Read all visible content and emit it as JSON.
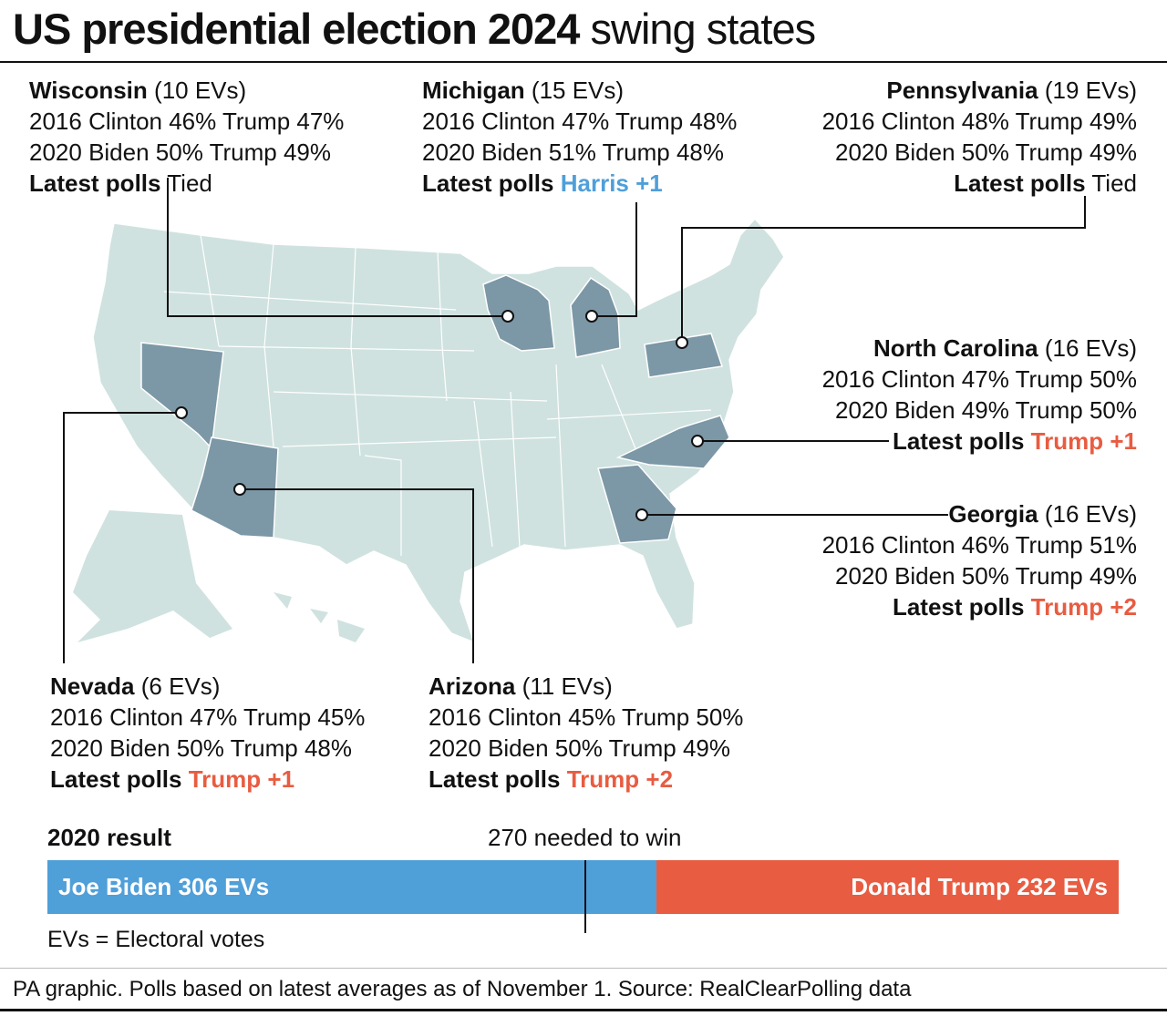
{
  "title": {
    "bold": "US presidential election 2024",
    "regular": "swing states"
  },
  "colors": {
    "map_land": "#cfe2df",
    "swing_state": "#7c97a6",
    "biden_blue": "#4f9fd9",
    "trump_red": "#e85c41",
    "harris_blue": "#4f9fd9"
  },
  "states": {
    "wisconsin": {
      "name": "Wisconsin",
      "evs": "(10 EVs)",
      "line2016": "2016 Clinton 46% Trump 47%",
      "line2020": "2020 Biden 50% Trump 49%",
      "polls_label": "Latest polls",
      "polls_value": "Tied",
      "lean": "tied"
    },
    "michigan": {
      "name": "Michigan",
      "evs": "(15 EVs)",
      "line2016": "2016 Clinton 47% Trump 48%",
      "line2020": "2020 Biden 51% Trump 48%",
      "polls_label": "Latest polls",
      "polls_value": "Harris +1",
      "lean": "harris"
    },
    "pennsylvania": {
      "name": "Pennsylvania",
      "evs": "(19 EVs)",
      "line2016": "2016 Clinton 48% Trump 49%",
      "line2020": "2020 Biden 50% Trump 49%",
      "polls_label": "Latest polls",
      "polls_value": "Tied",
      "lean": "tied"
    },
    "north_carolina": {
      "name": "North Carolina",
      "evs": "(16 EVs)",
      "line2016": "2016 Clinton 47% Trump 50%",
      "line2020": "2020 Biden 49% Trump 50%",
      "polls_label": "Latest polls",
      "polls_value": "Trump +1",
      "lean": "trump"
    },
    "georgia": {
      "name": "Georgia",
      "evs": "(16 EVs)",
      "line2016": "2016 Clinton 46% Trump 51%",
      "line2020": "2020 Biden 50% Trump 49%",
      "polls_label": "Latest polls",
      "polls_value": "Trump +2",
      "lean": "trump"
    },
    "nevada": {
      "name": "Nevada",
      "evs": "(6 EVs)",
      "line2016": "2016 Clinton 47% Trump 45%",
      "line2020": "2020 Biden 50% Trump 48%",
      "polls_label": "Latest polls",
      "polls_value": "Trump +1",
      "lean": "trump"
    },
    "arizona": {
      "name": "Arizona",
      "evs": "(11 EVs)",
      "line2016": "2016 Clinton 45% Trump 50%",
      "line2020": "2020 Biden 50% Trump 49%",
      "polls_label": "Latest polls",
      "polls_value": "Trump +2",
      "lean": "trump"
    }
  },
  "result_2020": {
    "heading": "2020 result",
    "threshold_label": "270 needed to win",
    "threshold": 270,
    "total": 538,
    "biden_label": "Joe Biden 306 EVs",
    "biden_evs": 306,
    "trump_label": "Donald Trump 232 EVs",
    "trump_evs": 232,
    "note": "EVs = Electoral votes"
  },
  "footer": "PA graphic. Polls based on latest averages as of November 1. Source: RealClearPolling data"
}
